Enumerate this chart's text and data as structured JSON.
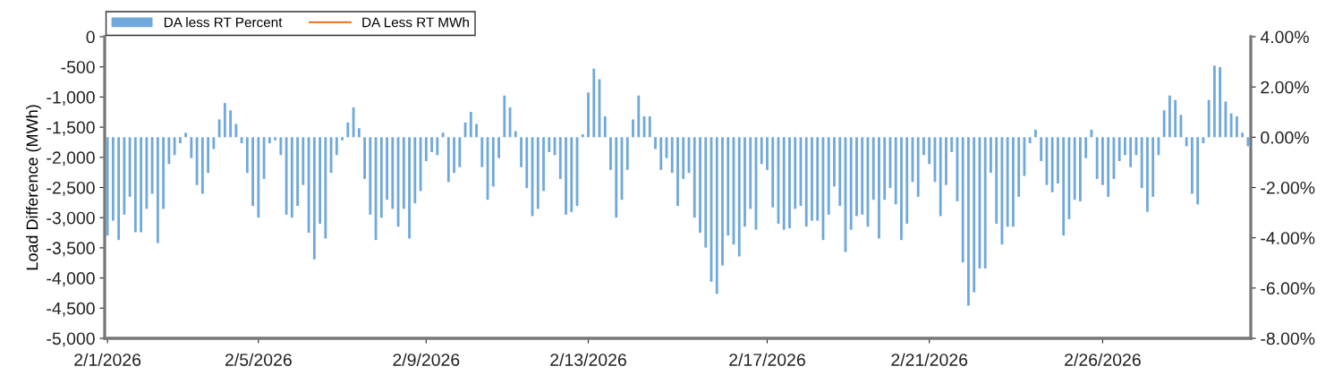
{
  "chart_data": {
    "type": "bar",
    "ylabel": "Load Difference (MWh)",
    "categories": [
      "2/1/2026",
      null,
      null,
      null,
      null,
      null,
      null,
      null,
      null,
      null,
      null,
      null,
      null,
      null,
      null,
      null,
      null,
      null,
      null,
      null,
      null,
      null,
      null,
      null,
      null,
      null,
      null,
      "2/5/2026",
      null,
      null,
      null,
      null,
      null,
      null,
      null,
      null,
      null,
      null,
      null,
      null,
      null,
      null,
      null,
      null,
      null,
      null,
      null,
      null,
      null,
      null,
      null,
      null,
      null,
      null,
      null,
      null,
      null,
      "2/9/2026",
      null,
      null,
      null,
      null,
      null,
      null,
      null,
      null,
      null,
      null,
      null,
      null,
      null,
      null,
      null,
      null,
      null,
      null,
      null,
      null,
      null,
      null,
      null,
      null,
      null,
      null,
      null,
      null,
      "2/13/2026",
      null,
      null,
      null,
      null,
      null,
      null,
      null,
      null,
      null,
      null,
      null,
      null,
      null,
      null,
      null,
      null,
      null,
      null,
      null,
      null,
      null,
      null,
      null,
      null,
      null,
      null,
      null,
      null,
      null,
      null,
      null,
      "2/17/2026",
      null,
      null,
      null,
      null,
      null,
      null,
      null,
      null,
      null,
      null,
      null,
      null,
      null,
      null,
      null,
      null,
      null,
      null,
      null,
      null,
      null,
      null,
      null,
      null,
      null,
      null,
      null,
      null,
      "2/21/2026",
      null,
      null,
      null,
      null,
      null,
      null,
      null,
      null,
      null,
      null,
      null,
      null,
      null,
      null,
      null,
      null,
      null,
      null,
      null,
      null,
      null,
      null,
      null,
      null,
      null,
      null,
      null,
      null,
      null,
      null,
      "2/26/2026",
      null,
      null,
      null,
      null,
      null,
      null,
      null,
      null,
      null,
      null,
      null,
      null,
      null,
      null,
      null,
      null,
      null,
      null,
      null,
      null,
      null,
      null,
      null,
      null,
      null,
      null
    ],
    "ylim": [
      -5000,
      0
    ],
    "yticks": [
      {
        "value": -5000,
        "label": "-5,000"
      },
      {
        "value": -4500,
        "label": "-4,500"
      },
      {
        "value": -4000,
        "label": "-4,000"
      },
      {
        "value": -3500,
        "label": "-3,500"
      },
      {
        "value": -3000,
        "label": "-3,000"
      },
      {
        "value": -2500,
        "label": "-2,500"
      },
      {
        "value": -2000,
        "label": "-2,000"
      },
      {
        "value": -1500,
        "label": "-1,500"
      },
      {
        "value": -1000,
        "label": "-1,000"
      },
      {
        "value": -500,
        "label": "-500"
      },
      {
        "value": 0,
        "label": "0"
      }
    ],
    "y2lim": [
      -8,
      4
    ],
    "y2ticks": [
      {
        "value": -8,
        "label": "-8.00%"
      },
      {
        "value": -6,
        "label": "-6.00%"
      },
      {
        "value": -4,
        "label": "-4.00%"
      },
      {
        "value": -2,
        "label": "-2.00%"
      },
      {
        "value": 0,
        "label": "0.00%"
      },
      {
        "value": 2,
        "label": "2.00%"
      },
      {
        "value": 4,
        "label": "4.00%"
      }
    ],
    "legend": "top left",
    "grid": false,
    "series": [
      {
        "name": "DA less RT Percent",
        "axis": "y2",
        "color": "#6fa8dc",
        "values": [
          -3.91,
          -3.32,
          -4.09,
          -3.08,
          -2.37,
          -3.78,
          -3.78,
          -2.85,
          -2.25,
          -4.21,
          -2.85,
          -1.07,
          -0.71,
          -0.24,
          0.18,
          -0.83,
          -1.9,
          -2.25,
          -1.42,
          -0.47,
          0.71,
          1.36,
          1.07,
          0.53,
          -0.24,
          -1.42,
          -2.73,
          -3.2,
          -1.66,
          -0.24,
          -0.12,
          -0.71,
          -3.08,
          -3.2,
          -2.73,
          -1.9,
          -3.8,
          -4.86,
          -3.44,
          -4.03,
          -1.42,
          -0.71,
          -0.12,
          0.59,
          1.19,
          0.36,
          -1.66,
          -3.08,
          -4.09,
          -3.2,
          -2.49,
          -2.85,
          -3.56,
          -2.85,
          -4.03,
          -2.63,
          -2.14,
          -0.95,
          -0.59,
          -0.71,
          0.18,
          -1.78,
          -1.42,
          -1.19,
          0.59,
          1.01,
          0.53,
          -1.19,
          -2.49,
          -1.96,
          -0.83,
          1.66,
          1.19,
          0.24,
          -1.19,
          -2.02,
          -3.14,
          -2.85,
          -2.14,
          -0.59,
          -0.71,
          -1.66,
          -3.08,
          -2.97,
          -2.73,
          0.12,
          1.78,
          2.73,
          2.31,
          0.83,
          -1.3,
          -3.2,
          -2.49,
          -1.3,
          0.71,
          1.66,
          0.83,
          0.83,
          -0.47,
          -1.3,
          -0.83,
          -1.42,
          -2.73,
          -1.66,
          -1.42,
          -3.2,
          -3.8,
          -4.39,
          -5.75,
          -6.23,
          -5.1,
          -3.91,
          -4.27,
          -4.74,
          -3.56,
          -2.85,
          -3.68,
          -1.07,
          -1.3,
          -2.79,
          -3.44,
          -3.68,
          -3.62,
          -2.85,
          -2.73,
          -3.56,
          -3.32,
          -3.32,
          -4.09,
          -3.08,
          -1.96,
          -2.73,
          -4.57,
          -3.68,
          -3.14,
          -3.08,
          -3.56,
          -2.49,
          -4.03,
          -2.49,
          -2.02,
          -2.67,
          -4.09,
          -3.44,
          -1.78,
          -2.37,
          -0.71,
          -1.07,
          -1.78,
          -3.14,
          -1.9,
          -0.59,
          -2.55,
          -4.98,
          -6.7,
          -6.17,
          -5.22,
          -5.22,
          -1.42,
          -3.44,
          -4.27,
          -3.56,
          -3.56,
          -2.37,
          -1.54,
          -0.24,
          0.3,
          -0.95,
          -1.9,
          -2.19,
          -1.84,
          -3.91,
          -3.26,
          -2.49,
          -2.55,
          -0.83,
          0.3,
          -1.66,
          -1.9,
          -2.37,
          -1.66,
          -0.95,
          -0.71,
          -1.19,
          -0.71,
          -2.02,
          -2.97,
          -2.37,
          -0.71,
          1.07,
          1.66,
          1.48,
          0.89,
          -0.36,
          -2.25,
          -2.67,
          -0.24,
          1.48,
          2.85,
          2.79,
          1.42,
          0.95,
          0.83,
          0.18,
          -0.36
        ]
      },
      {
        "name": "DA Less RT MWh",
        "type": "line",
        "axis": "y",
        "color": "#ed7d31",
        "values": [
          null,
          null,
          null,
          null,
          null,
          null,
          null,
          null,
          null,
          null,
          null,
          null,
          null,
          null,
          null,
          null,
          null,
          null,
          null,
          null,
          null,
          null,
          null,
          null,
          null,
          null,
          null,
          null,
          null,
          null,
          null,
          null,
          null,
          null,
          null,
          null,
          null,
          null,
          null,
          null,
          null,
          null,
          null,
          null,
          null,
          null,
          null,
          null,
          null,
          null,
          null,
          null,
          null,
          null,
          null,
          null,
          null,
          null,
          null,
          null,
          null,
          null,
          null,
          null,
          null,
          null,
          null,
          null,
          null,
          null,
          null,
          null,
          null,
          null,
          null,
          null,
          null,
          null,
          null,
          null,
          null,
          null,
          null,
          null,
          null,
          null,
          null,
          null,
          null,
          null,
          null,
          null,
          null,
          null,
          null,
          null,
          null,
          null,
          null,
          null,
          null,
          null,
          null,
          null,
          null,
          null,
          null,
          null,
          null,
          null,
          null,
          null,
          null,
          null,
          null,
          null,
          null,
          null,
          null,
          null,
          null,
          null,
          null,
          null,
          null,
          null,
          null,
          null,
          null,
          null,
          null,
          null,
          null,
          null,
          null,
          null,
          null,
          null,
          null,
          null,
          null,
          null,
          null,
          null,
          null,
          null,
          null,
          null,
          null,
          null,
          null,
          null,
          null,
          null,
          null,
          null,
          null,
          null,
          null,
          null,
          null,
          null,
          null,
          null,
          null,
          null,
          null,
          null,
          null,
          null,
          null,
          null,
          null,
          null,
          null,
          null,
          null,
          null,
          null,
          null,
          null,
          null,
          null,
          null,
          null,
          null,
          null,
          null,
          null,
          null,
          null,
          null,
          null,
          null,
          null,
          null,
          null,
          null,
          null,
          null,
          null,
          null,
          null,
          null,
          null
        ]
      }
    ]
  }
}
